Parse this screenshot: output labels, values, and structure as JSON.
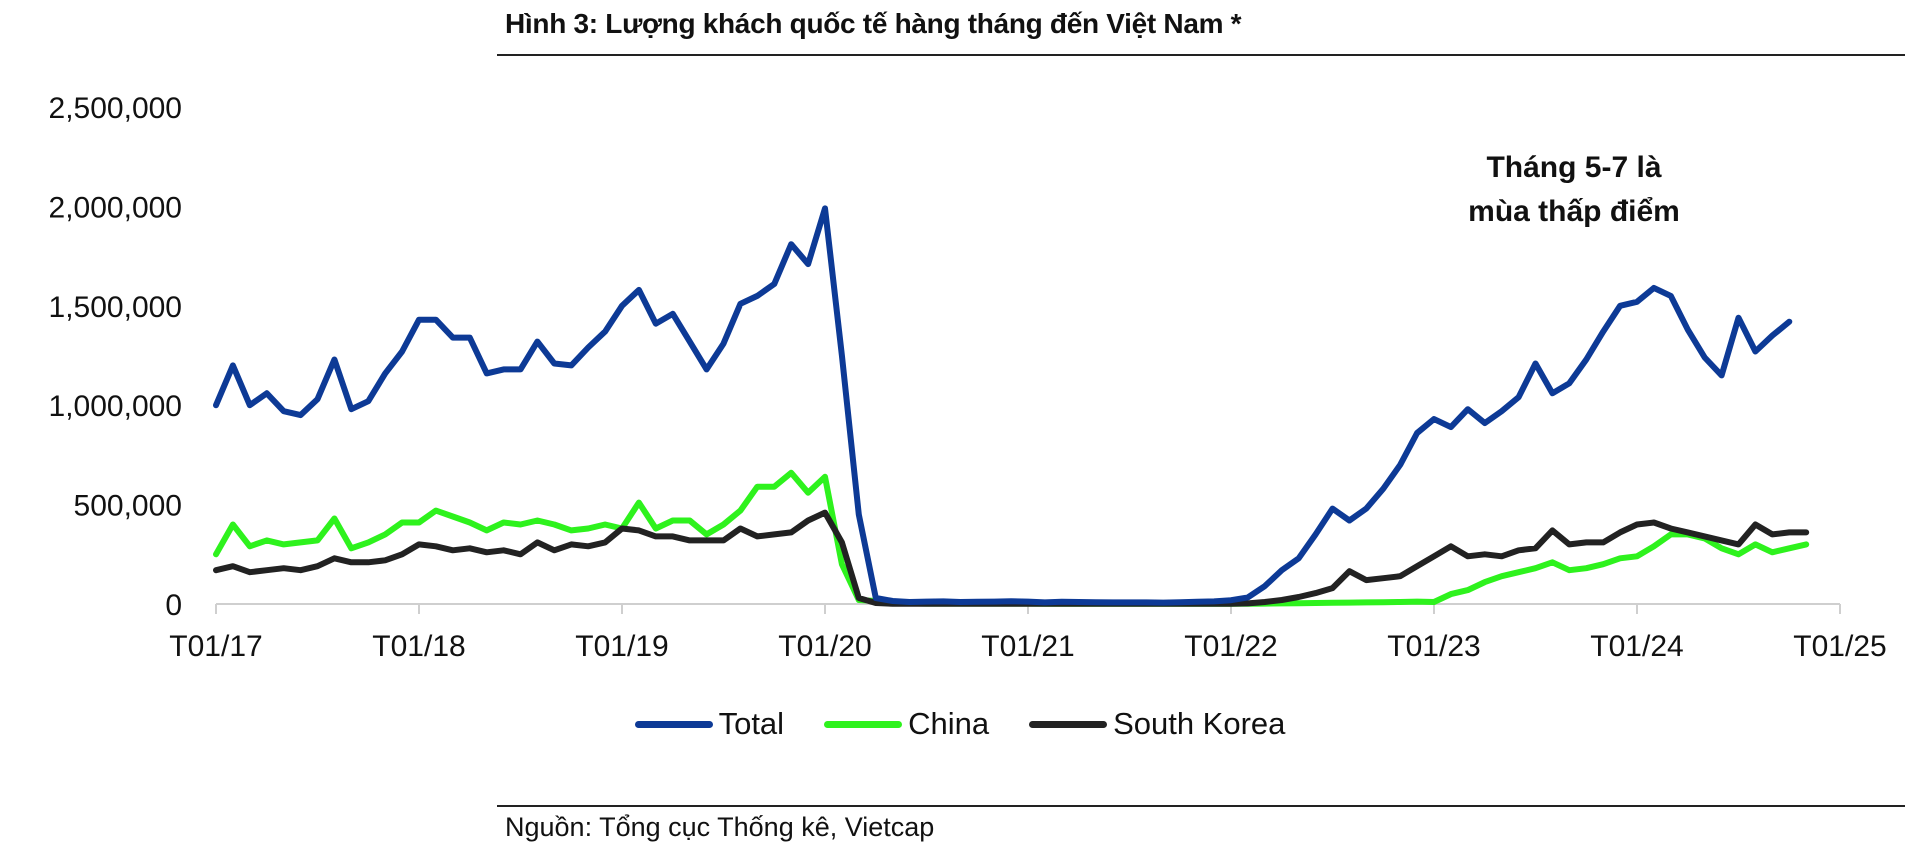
{
  "figure": {
    "title": "Hình 3: Lượng khách quốc tế hàng tháng đến Việt Nam *",
    "source": "Nguồn: Tổng cục Thống kê, Vietcap",
    "annotation": [
      "Tháng 5-7 là",
      "mùa thấp điểm"
    ]
  },
  "chart_data": {
    "type": "line",
    "title": "",
    "xlabel": "",
    "ylabel": "",
    "ylim": [
      0,
      2500000
    ],
    "yticks": [
      0,
      500000,
      1000000,
      1500000,
      2000000,
      2500000
    ],
    "ytick_labels": [
      "0",
      "500,000",
      "1,000,000",
      "1,500,000",
      "2,000,000",
      "2,500,000"
    ],
    "xtick_labels": [
      "T01/17",
      "T01/18",
      "T01/19",
      "T01/20",
      "T01/21",
      "T01/22",
      "T01/23",
      "T01/24",
      "T01/25"
    ],
    "x_start": "2017-01",
    "grid": false,
    "legend_position": "bottom-center",
    "series": [
      {
        "name": "Total",
        "color": "#0d3a96",
        "values": [
          1000000,
          1200000,
          1000000,
          1060000,
          970000,
          950000,
          1030000,
          1230000,
          980000,
          1020000,
          1160000,
          1270000,
          1430000,
          1430000,
          1340000,
          1340000,
          1160000,
          1180000,
          1180000,
          1320000,
          1210000,
          1200000,
          1290000,
          1370000,
          1500000,
          1580000,
          1410000,
          1460000,
          1320000,
          1180000,
          1310000,
          1510000,
          1550000,
          1610000,
          1810000,
          1710000,
          1990000,
          1250000,
          450000,
          30000,
          15000,
          10000,
          12000,
          13000,
          10000,
          11000,
          12000,
          14000,
          12000,
          8000,
          11000,
          10000,
          9000,
          8000,
          8000,
          8000,
          7000,
          9000,
          11000,
          13000,
          19000,
          33000,
          90000,
          170000,
          230000,
          350000,
          480000,
          420000,
          480000,
          580000,
          700000,
          860000,
          930000,
          890000,
          980000,
          910000,
          970000,
          1040000,
          1210000,
          1060000,
          1110000,
          1230000,
          1370000,
          1500000,
          1520000,
          1590000,
          1550000,
          1380000,
          1240000,
          1150000,
          1440000,
          1270000,
          1350000,
          1420000
        ]
      },
      {
        "name": "China",
        "color": "#2ef21d",
        "values": [
          250000,
          400000,
          290000,
          320000,
          300000,
          310000,
          320000,
          430000,
          280000,
          310000,
          350000,
          410000,
          410000,
          470000,
          440000,
          410000,
          370000,
          410000,
          400000,
          420000,
          400000,
          370000,
          380000,
          400000,
          380000,
          510000,
          380000,
          420000,
          420000,
          350000,
          400000,
          470000,
          590000,
          590000,
          660000,
          560000,
          640000,
          200000,
          20000,
          15000,
          5000,
          3000,
          2000,
          2000,
          2000,
          2000,
          2000,
          2000,
          2000,
          1000,
          1000,
          1000,
          1000,
          1000,
          1000,
          1000,
          1000,
          1000,
          1000,
          1000,
          1000,
          1000,
          2000,
          3000,
          4000,
          5000,
          6000,
          7000,
          8000,
          9000,
          10000,
          12000,
          10000,
          50000,
          70000,
          110000,
          140000,
          160000,
          180000,
          210000,
          170000,
          180000,
          200000,
          230000,
          240000,
          290000,
          350000,
          350000,
          330000,
          280000,
          250000,
          300000,
          260000,
          280000,
          300000
        ]
      },
      {
        "name": "South Korea",
        "color": "#222222",
        "values": [
          170000,
          190000,
          160000,
          170000,
          180000,
          170000,
          190000,
          230000,
          210000,
          210000,
          220000,
          250000,
          300000,
          290000,
          270000,
          280000,
          260000,
          270000,
          250000,
          310000,
          270000,
          300000,
          290000,
          310000,
          380000,
          370000,
          340000,
          340000,
          320000,
          320000,
          320000,
          380000,
          340000,
          350000,
          360000,
          420000,
          460000,
          310000,
          30000,
          5000,
          1000,
          1000,
          1000,
          1000,
          1000,
          1000,
          1000,
          1000,
          1000,
          1000,
          1000,
          1000,
          1000,
          1000,
          1000,
          1000,
          1000,
          1000,
          1000,
          1000,
          1000,
          3000,
          10000,
          20000,
          35000,
          55000,
          80000,
          165000,
          120000,
          130000,
          140000,
          190000,
          240000,
          290000,
          240000,
          250000,
          240000,
          270000,
          280000,
          370000,
          300000,
          310000,
          310000,
          360000,
          400000,
          410000,
          380000,
          360000,
          340000,
          320000,
          300000,
          400000,
          350000,
          360000,
          360000
        ]
      }
    ]
  }
}
